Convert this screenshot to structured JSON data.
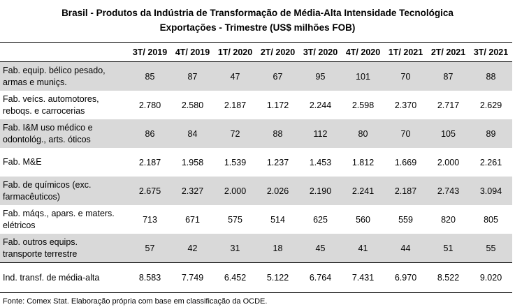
{
  "title": {
    "line1": "Brasil - Produtos da Indústria de Transformação de Média-Alta Intensidade Tecnológica",
    "line2": "Exportações - Trimestre (US$ milhões FOB)"
  },
  "columns": [
    "3T/ 2019",
    "4T/ 2019",
    "1T/ 2020",
    "2T/ 2020",
    "3T/ 2020",
    "4T/ 2020",
    "1T/ 2021",
    "2T/ 2021",
    "3T/ 2021"
  ],
  "rows": [
    {
      "label": "Fab. equip. bélico pesado, armas e munições.",
      "label_l1": "Fab. equip. bélico pesado,",
      "label_l2": "armas e muniçs.",
      "values": [
        "85",
        "87",
        "47",
        "67",
        "95",
        "101",
        "70",
        "87",
        "88"
      ]
    },
    {
      "label_l1": "Fab. veícs. automotores,",
      "label_l2": "reboqs. e carrocerias",
      "values": [
        "2.780",
        "2.580",
        "2.187",
        "1.172",
        "2.244",
        "2.598",
        "2.370",
        "2.717",
        "2.629"
      ]
    },
    {
      "label_l1": "Fab. I&M uso médico e",
      "label_l2": "odontológ., arts. óticos",
      "values": [
        "86",
        "84",
        "72",
        "88",
        "112",
        "80",
        "70",
        "105",
        "89"
      ]
    },
    {
      "label_l1": "Fab. M&E",
      "label_l2": "",
      "values": [
        "2.187",
        "1.958",
        "1.539",
        "1.237",
        "1.453",
        "1.812",
        "1.669",
        "2.000",
        "2.261"
      ]
    },
    {
      "label_l1": "Fab. de químicos (exc.",
      "label_l2": "farmacêuticos)",
      "values": [
        "2.675",
        "2.327",
        "2.000",
        "2.026",
        "2.190",
        "2.241",
        "2.187",
        "2.743",
        "3.094"
      ]
    },
    {
      "label_l1": "Fab. máqs., apars. e maters.",
      "label_l2": "elétricos",
      "values": [
        "713",
        "671",
        "575",
        "514",
        "625",
        "560",
        "559",
        "820",
        "805"
      ]
    },
    {
      "label_l1": "Fab. outros equips.",
      "label_l2": "transporte terrestre",
      "values": [
        "57",
        "42",
        "31",
        "18",
        "45",
        "41",
        "44",
        "51",
        "55"
      ]
    },
    {
      "label_l1": "Ind. transf. de média-alta",
      "label_l2": "",
      "values": [
        "8.583",
        "7.749",
        "6.452",
        "5.122",
        "6.764",
        "7.431",
        "6.970",
        "8.522",
        "9.020"
      ]
    }
  ],
  "footnote": "Fonte: Comex Stat. Elaboração própria com base em classificação da OCDE.",
  "colors": {
    "shade": "#d9d9d9",
    "rule": "#000000"
  }
}
